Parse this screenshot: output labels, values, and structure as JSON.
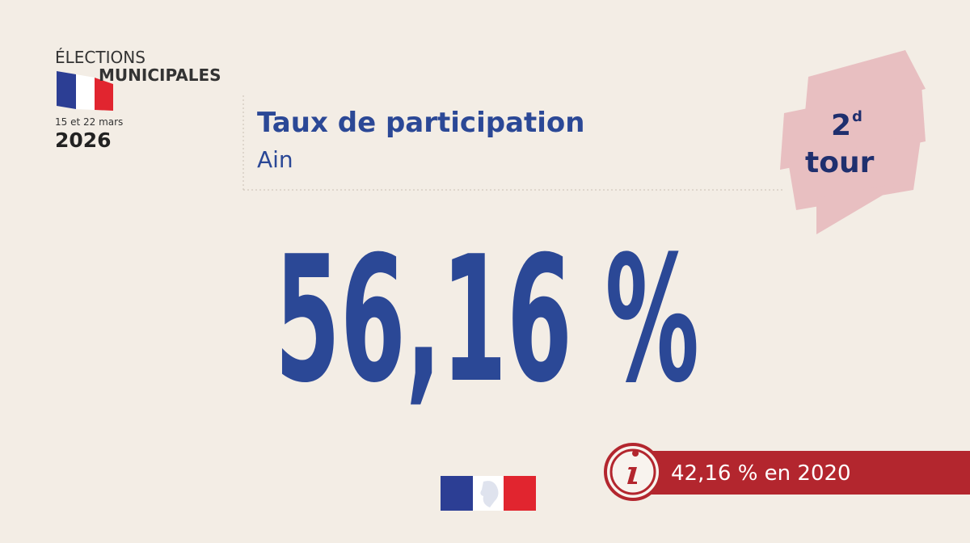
{
  "logo": {
    "line1": "ÉLECTIONS",
    "line2": "MUNICIPALES",
    "dates": "15 et 22 mars",
    "year": "2026"
  },
  "header": {
    "title": "Taux de participation",
    "subtitle": "Ain"
  },
  "badge": {
    "number": "2",
    "suffix": "d",
    "word": "tour"
  },
  "main_value": "56,16 %",
  "info": {
    "text": "42,16 % en 2020"
  }
}
